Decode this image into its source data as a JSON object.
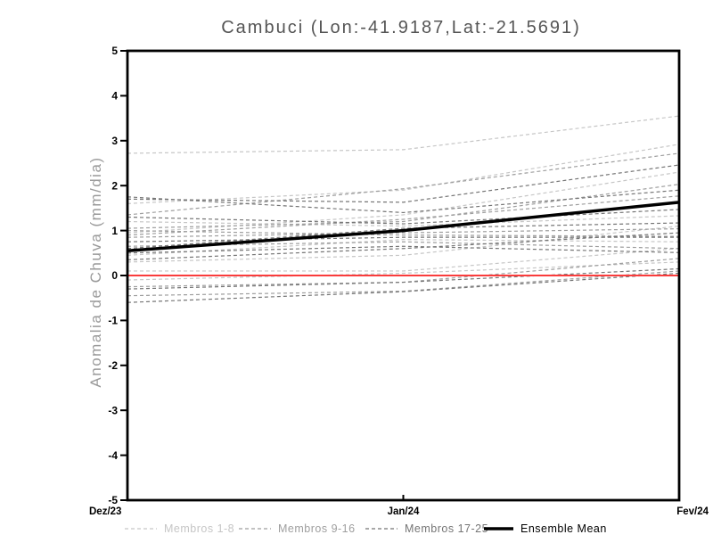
{
  "title": "Cambuci (Lon:-41.9187,Lat:-21.5691)",
  "chart_data": {
    "type": "line",
    "title": "Cambuci (Lon:-41.9187,Lat:-21.5691)",
    "xlabel": "",
    "ylabel": "Anomalia de Chuva (mm/dia)",
    "x_categories": [
      "Dez/23",
      "Jan/24",
      "Fev/24"
    ],
    "ylim": [
      -5,
      5
    ],
    "ytick_values": [
      5,
      4,
      3,
      2,
      1,
      0,
      -1,
      -2,
      -3,
      -4,
      -5
    ],
    "ytick_labels": [
      "5",
      "4",
      "3",
      "2",
      "1",
      "0",
      "-1",
      "-2",
      "-3",
      "-4",
      "-5"
    ],
    "grid": "off",
    "frame": "box",
    "zero_line": {
      "value": 0,
      "color": "#fa3c3c"
    },
    "legend_position": "bottom",
    "legend": [
      {
        "label": "Membros 1-8",
        "color": "#c6c6c6",
        "style": "dashed"
      },
      {
        "label": "Membros 9-16",
        "color": "#9e9e9e",
        "style": "dashed"
      },
      {
        "label": "Membros 17-25",
        "color": "#757575",
        "style": "dashed"
      },
      {
        "label": "Ensemble Mean",
        "color": "#000000",
        "style": "solid"
      }
    ],
    "series": [
      {
        "name": "member-1",
        "group": "Membros 1-8",
        "color": "#c6c6c6",
        "values": [
          2.72,
          2.8,
          3.55
        ]
      },
      {
        "name": "member-2",
        "group": "Membros 1-8",
        "color": "#c6c6c6",
        "values": [
          1.6,
          1.9,
          2.92
        ]
      },
      {
        "name": "member-3",
        "group": "Membros 1-8",
        "color": "#c6c6c6",
        "values": [
          0.95,
          1.35,
          2.3
        ]
      },
      {
        "name": "member-4",
        "group": "Membros 1-8",
        "color": "#c6c6c6",
        "values": [
          1.2,
          1.1,
          1.33
        ]
      },
      {
        "name": "member-5",
        "group": "Membros 1-8",
        "color": "#c6c6c6",
        "values": [
          0.45,
          0.8,
          0.75
        ]
      },
      {
        "name": "member-6",
        "group": "Membros 1-8",
        "color": "#c6c6c6",
        "values": [
          0.1,
          0.1,
          0.6
        ]
      },
      {
        "name": "member-7",
        "group": "Membros 1-8",
        "color": "#c6c6c6",
        "values": [
          -0.1,
          0.05,
          0.3
        ]
      },
      {
        "name": "member-8",
        "group": "Membros 1-8",
        "color": "#c6c6c6",
        "values": [
          0.3,
          0.45,
          1.1
        ]
      },
      {
        "name": "member-9",
        "group": "Membros 9-16",
        "color": "#9e9e9e",
        "values": [
          1.35,
          1.93,
          2.72
        ]
      },
      {
        "name": "member-10",
        "group": "Membros 9-16",
        "color": "#9e9e9e",
        "values": [
          1.05,
          1.2,
          2.03
        ]
      },
      {
        "name": "member-11",
        "group": "Membros 9-16",
        "color": "#9e9e9e",
        "values": [
          0.9,
          1.25,
          1.77
        ]
      },
      {
        "name": "member-12",
        "group": "Membros 9-16",
        "color": "#9e9e9e",
        "values": [
          0.85,
          0.95,
          1.04
        ]
      },
      {
        "name": "member-13",
        "group": "Membros 9-16",
        "color": "#9e9e9e",
        "values": [
          0.65,
          0.75,
          0.6
        ]
      },
      {
        "name": "member-14",
        "group": "Membros 9-16",
        "color": "#9e9e9e",
        "values": [
          -0.25,
          -0.15,
          0.38
        ]
      },
      {
        "name": "member-15",
        "group": "Membros 9-16",
        "color": "#9e9e9e",
        "values": [
          -0.45,
          -0.35,
          0.1
        ]
      },
      {
        "name": "member-16",
        "group": "Membros 9-16",
        "color": "#9e9e9e",
        "values": [
          1.0,
          0.9,
          0.87
        ]
      },
      {
        "name": "member-17",
        "group": "Membros 17-25",
        "color": "#757575",
        "values": [
          1.7,
          1.63,
          2.46
        ]
      },
      {
        "name": "member-18",
        "group": "Membros 17-25",
        "color": "#757575",
        "values": [
          1.75,
          1.4,
          1.9
        ]
      },
      {
        "name": "member-19",
        "group": "Membros 17-25",
        "color": "#757575",
        "values": [
          1.3,
          1.15,
          1.47
        ]
      },
      {
        "name": "member-20",
        "group": "Membros 17-25",
        "color": "#757575",
        "values": [
          0.6,
          1.05,
          1.17
        ]
      },
      {
        "name": "member-21",
        "group": "Membros 17-25",
        "color": "#757575",
        "values": [
          0.75,
          0.85,
          0.85
        ]
      },
      {
        "name": "member-22",
        "group": "Membros 17-25",
        "color": "#757575",
        "values": [
          0.5,
          0.65,
          0.51
        ]
      },
      {
        "name": "member-23",
        "group": "Membros 17-25",
        "color": "#757575",
        "values": [
          0.35,
          0.6,
          0.95
        ]
      },
      {
        "name": "member-24",
        "group": "Membros 17-25",
        "color": "#757575",
        "values": [
          -0.3,
          -0.15,
          0.15
        ]
      },
      {
        "name": "member-25",
        "group": "Membros 17-25",
        "color": "#757575",
        "values": [
          -0.6,
          -0.36,
          0.05
        ]
      }
    ],
    "ensemble_mean": {
      "name": "Ensemble Mean",
      "color": "#000000",
      "values": [
        0.55,
        1.0,
        1.63
      ]
    }
  }
}
